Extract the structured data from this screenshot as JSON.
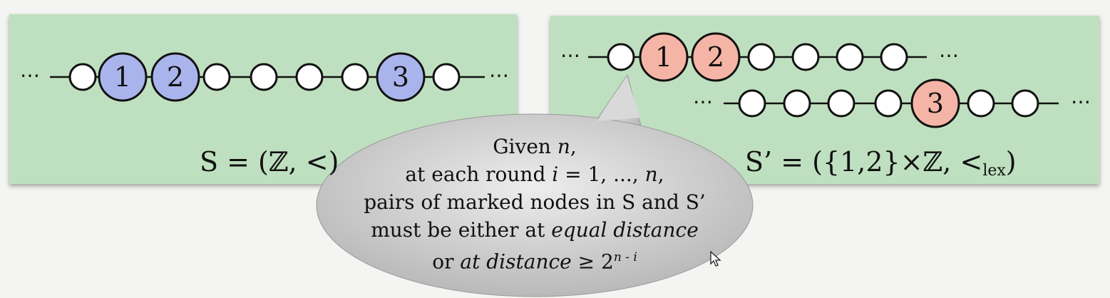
{
  "left_panel": {
    "nodes": [
      "",
      "1",
      "2",
      "",
      "",
      "",
      "",
      "3",
      ""
    ],
    "formula": "S = (ℤ, <)"
  },
  "right_panel": {
    "row1_nodes": [
      "",
      "1",
      "2",
      "",
      "",
      "",
      ""
    ],
    "row2_nodes": [
      "",
      "",
      "",
      "",
      "3",
      "",
      ""
    ],
    "formula_main": "S’ = ({1,2}×ℤ, <",
    "formula_sub": "lex",
    "formula_close": ")"
  },
  "bubble": {
    "line1_a": "Given ",
    "line1_b": "n",
    "line1_c": ",",
    "line2_a": "at each round ",
    "line2_b": "i",
    "line2_c": " = 1, ..., ",
    "line2_d": "n",
    "line2_e": ",",
    "line3": "pairs of marked nodes in S and S’",
    "line4_a": "must be either at ",
    "line4_b": "equal distance",
    "line5_a": "or ",
    "line5_b": "at distance",
    "line5_c": " ≥ 2",
    "line5_sup": "n - i"
  },
  "ellipsis": "⋯",
  "colors": {
    "panel": "#bfe0c0",
    "blue_node": "#aab4ec",
    "salmon_node": "#f5b5a6",
    "white_node": "#ffffff"
  }
}
